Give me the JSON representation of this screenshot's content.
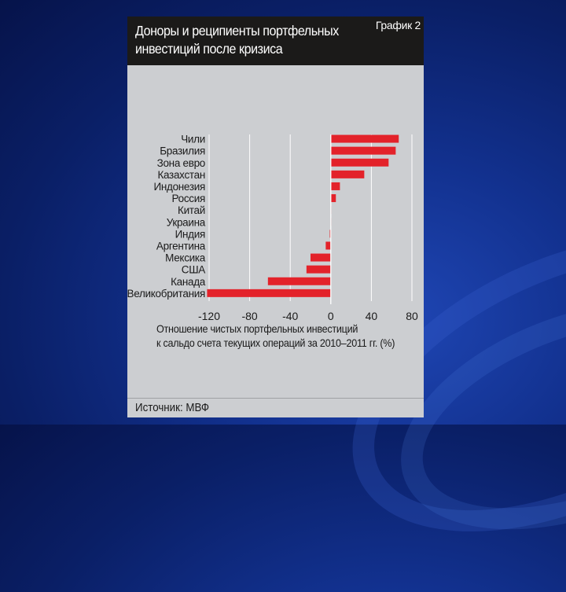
{
  "chart_data": {
    "type": "bar",
    "orientation": "horizontal",
    "title": "Доноры и реципиенты портфельных инвестиций после кризиса",
    "tag": "График 2",
    "categories": [
      "Чили",
      "Бразилия",
      "Зона евро",
      "Казахстан",
      "Индонезия",
      "Россия",
      "Китай",
      "Украина",
      "Индия",
      "Аргентина",
      "Мексика",
      "США",
      "Канада",
      "Великобритания"
    ],
    "values": [
      67,
      64,
      57,
      33,
      9,
      5,
      0.5,
      0,
      -1,
      -5,
      -20,
      -24,
      -62,
      -122
    ],
    "xlim": [
      -120,
      80
    ],
    "xticks": [
      "-120",
      "-80",
      "-40",
      "0",
      "40",
      "80"
    ],
    "xlabel_line1": "Отношение чистых портфельных инвестиций",
    "xlabel_line2": "к сальдо счета текущих операций за 2010–2011 гг. (%)",
    "bar_color": "#e3222a",
    "grid": true,
    "source": "Источник: МВФ"
  }
}
